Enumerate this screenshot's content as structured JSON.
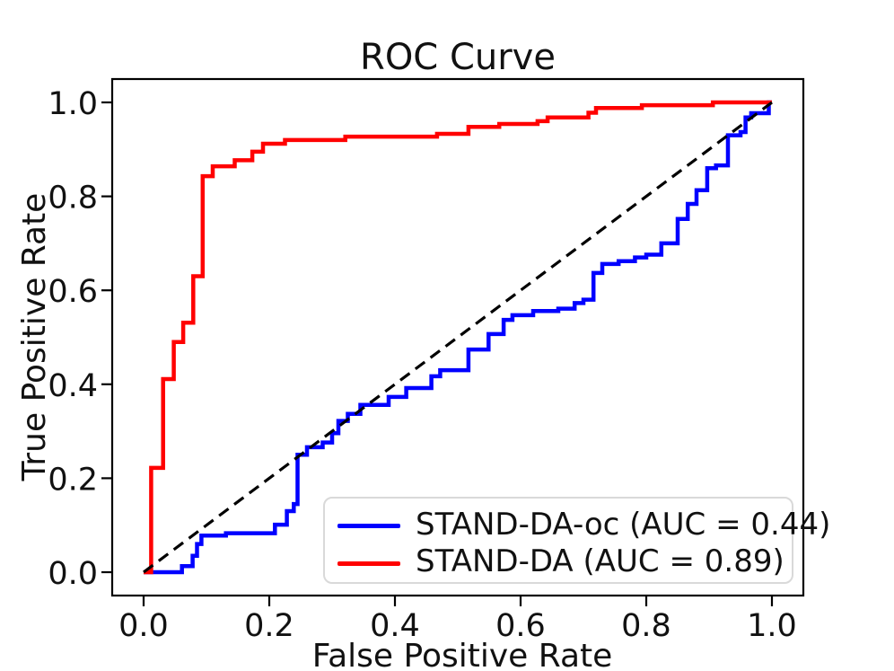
{
  "title": "ROC Curve",
  "axes": {
    "xlabel": "False Positive Rate",
    "ylabel": "True Positive Rate",
    "xtick_labels": [
      "0.0",
      "0.2",
      "0.4",
      "0.6",
      "0.8",
      "1.0"
    ],
    "ytick_labels": [
      "0.0",
      "0.2",
      "0.4",
      "0.6",
      "0.8",
      "1.0"
    ]
  },
  "legend": {
    "position": "lower right",
    "items": [
      {
        "label": "STAND-DA-oc (AUC = 0.44)",
        "color": "#0000ff"
      },
      {
        "label": "STAND-DA (AUC = 0.89)",
        "color": "#ff0000"
      }
    ]
  },
  "colors": {
    "blue_curve": "#0000ff",
    "red_curve": "#ff0000",
    "diagonal": "#000000",
    "text": "#111111",
    "spine": "#000000"
  },
  "chart_data": {
    "type": "line",
    "title": "ROC Curve",
    "xlabel": "False Positive Rate",
    "ylabel": "True Positive Rate",
    "xlim": [
      -0.05,
      1.05
    ],
    "ylim": [
      -0.05,
      1.05
    ],
    "xticks": [
      0,
      0.2,
      0.4,
      0.6,
      0.8,
      1.0
    ],
    "yticks": [
      0,
      0.2,
      0.4,
      0.6,
      0.8,
      1.0
    ],
    "grid": false,
    "legend_position": "lower right",
    "series": [
      {
        "name": "STAND-DA-oc (AUC = 0.44)",
        "auc": 0.44,
        "color": "#0000ff",
        "style": "solid",
        "points": [
          [
            0,
            0
          ],
          [
            0.061,
            0
          ],
          [
            0.061,
            0.013
          ],
          [
            0.078,
            0.013
          ],
          [
            0.078,
            0.035
          ],
          [
            0.085,
            0.035
          ],
          [
            0.085,
            0.06
          ],
          [
            0.092,
            0.06
          ],
          [
            0.092,
            0.078
          ],
          [
            0.131,
            0.078
          ],
          [
            0.131,
            0.083
          ],
          [
            0.209,
            0.083
          ],
          [
            0.209,
            0.101
          ],
          [
            0.228,
            0.101
          ],
          [
            0.228,
            0.13
          ],
          [
            0.239,
            0.13
          ],
          [
            0.239,
            0.145
          ],
          [
            0.245,
            0.145
          ],
          [
            0.245,
            0.25
          ],
          [
            0.26,
            0.25
          ],
          [
            0.26,
            0.266
          ],
          [
            0.285,
            0.266
          ],
          [
            0.285,
            0.276
          ],
          [
            0.3,
            0.276
          ],
          [
            0.3,
            0.296
          ],
          [
            0.31,
            0.296
          ],
          [
            0.31,
            0.322
          ],
          [
            0.325,
            0.322
          ],
          [
            0.325,
            0.337
          ],
          [
            0.345,
            0.337
          ],
          [
            0.345,
            0.356
          ],
          [
            0.39,
            0.356
          ],
          [
            0.39,
            0.373
          ],
          [
            0.418,
            0.373
          ],
          [
            0.418,
            0.392
          ],
          [
            0.458,
            0.392
          ],
          [
            0.458,
            0.417
          ],
          [
            0.472,
            0.417
          ],
          [
            0.472,
            0.43
          ],
          [
            0.517,
            0.43
          ],
          [
            0.517,
            0.474
          ],
          [
            0.549,
            0.474
          ],
          [
            0.549,
            0.507
          ],
          [
            0.573,
            0.507
          ],
          [
            0.573,
            0.537
          ],
          [
            0.587,
            0.537
          ],
          [
            0.587,
            0.547
          ],
          [
            0.62,
            0.547
          ],
          [
            0.62,
            0.556
          ],
          [
            0.66,
            0.556
          ],
          [
            0.66,
            0.561
          ],
          [
            0.686,
            0.561
          ],
          [
            0.686,
            0.573
          ],
          [
            0.7,
            0.573
          ],
          [
            0.7,
            0.58
          ],
          [
            0.716,
            0.58
          ],
          [
            0.716,
            0.637
          ],
          [
            0.73,
            0.637
          ],
          [
            0.73,
            0.656
          ],
          [
            0.756,
            0.656
          ],
          [
            0.756,
            0.662
          ],
          [
            0.782,
            0.662
          ],
          [
            0.782,
            0.67
          ],
          [
            0.8,
            0.67
          ],
          [
            0.8,
            0.676
          ],
          [
            0.824,
            0.676
          ],
          [
            0.824,
            0.7
          ],
          [
            0.85,
            0.7
          ],
          [
            0.85,
            0.752
          ],
          [
            0.866,
            0.752
          ],
          [
            0.866,
            0.784
          ],
          [
            0.88,
            0.784
          ],
          [
            0.88,
            0.813
          ],
          [
            0.897,
            0.813
          ],
          [
            0.897,
            0.86
          ],
          [
            0.911,
            0.86
          ],
          [
            0.911,
            0.866
          ],
          [
            0.93,
            0.866
          ],
          [
            0.93,
            0.93
          ],
          [
            0.95,
            0.93
          ],
          [
            0.95,
            0.937
          ],
          [
            0.958,
            0.937
          ],
          [
            0.958,
            0.968
          ],
          [
            0.967,
            0.968
          ],
          [
            0.967,
            0.977
          ],
          [
            0.995,
            0.977
          ],
          [
            0.995,
            1.0
          ],
          [
            1.0,
            1.0
          ]
        ]
      },
      {
        "name": "STAND-DA (AUC = 0.89)",
        "auc": 0.89,
        "color": "#ff0000",
        "style": "solid",
        "points": [
          [
            0,
            0
          ],
          [
            0.012,
            0
          ],
          [
            0.012,
            0.222
          ],
          [
            0.031,
            0.222
          ],
          [
            0.031,
            0.411
          ],
          [
            0.048,
            0.411
          ],
          [
            0.048,
            0.49
          ],
          [
            0.063,
            0.49
          ],
          [
            0.063,
            0.531
          ],
          [
            0.079,
            0.531
          ],
          [
            0.079,
            0.63
          ],
          [
            0.094,
            0.63
          ],
          [
            0.094,
            0.843
          ],
          [
            0.11,
            0.843
          ],
          [
            0.11,
            0.864
          ],
          [
            0.145,
            0.864
          ],
          [
            0.145,
            0.877
          ],
          [
            0.173,
            0.877
          ],
          [
            0.173,
            0.895
          ],
          [
            0.19,
            0.895
          ],
          [
            0.19,
            0.912
          ],
          [
            0.225,
            0.912
          ],
          [
            0.225,
            0.92
          ],
          [
            0.321,
            0.92
          ],
          [
            0.321,
            0.927
          ],
          [
            0.467,
            0.927
          ],
          [
            0.467,
            0.933
          ],
          [
            0.517,
            0.933
          ],
          [
            0.517,
            0.948
          ],
          [
            0.566,
            0.948
          ],
          [
            0.566,
            0.954
          ],
          [
            0.627,
            0.954
          ],
          [
            0.627,
            0.96
          ],
          [
            0.643,
            0.96
          ],
          [
            0.643,
            0.968
          ],
          [
            0.708,
            0.968
          ],
          [
            0.708,
            0.978
          ],
          [
            0.72,
            0.978
          ],
          [
            0.72,
            0.988
          ],
          [
            0.793,
            0.988
          ],
          [
            0.793,
            0.994
          ],
          [
            0.906,
            0.994
          ],
          [
            0.906,
            1.0
          ],
          [
            1.0,
            1.0
          ]
        ]
      },
      {
        "name": "chance-diagonal",
        "color": "#000000",
        "style": "dashed",
        "points": [
          [
            0,
            0
          ],
          [
            1,
            1
          ]
        ]
      }
    ]
  }
}
